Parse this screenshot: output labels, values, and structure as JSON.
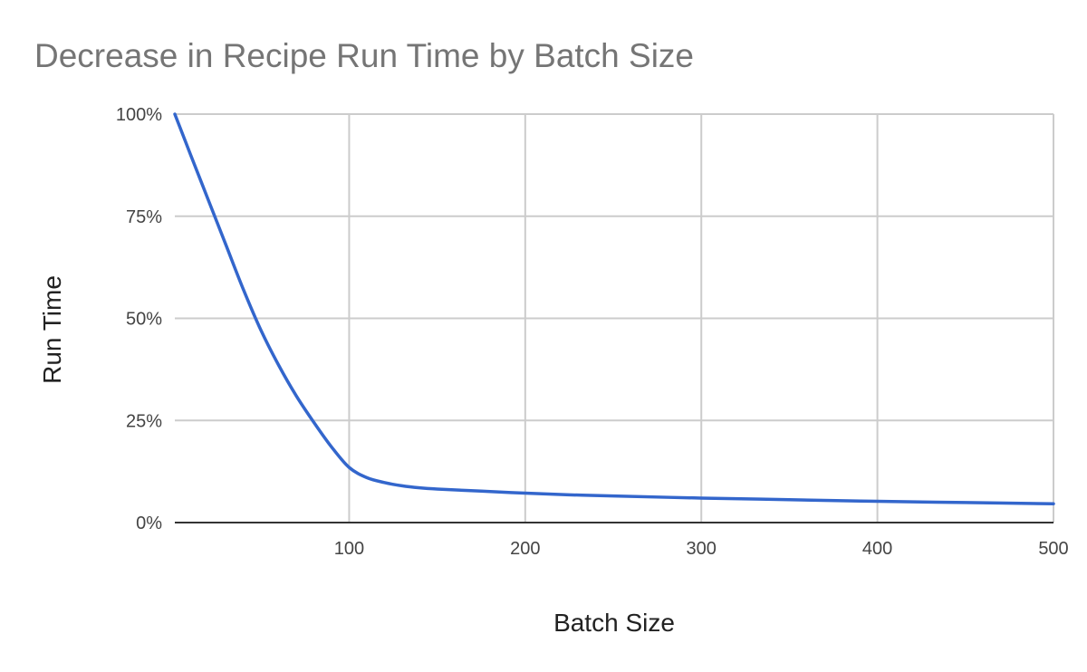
{
  "chart_data": {
    "type": "line",
    "title": "Decrease in Recipe Run Time by Batch Size",
    "xlabel": "Batch Size",
    "ylabel": "Run Time",
    "xlim": [
      1,
      500
    ],
    "ylim": [
      0,
      1
    ],
    "x_ticks": [
      100,
      200,
      300,
      400,
      500
    ],
    "x_tick_labels": [
      "100",
      "200",
      "300",
      "400",
      "500"
    ],
    "y_ticks": [
      0,
      0.25,
      0.5,
      0.75,
      1.0
    ],
    "y_tick_labels": [
      "0%",
      "25%",
      "50%",
      "75%",
      "100%"
    ],
    "grid": true,
    "legend": "none",
    "series": [
      {
        "color": "#3366cc",
        "x": [
          1,
          10,
          20,
          30,
          40,
          50,
          60,
          70,
          80,
          90,
          100,
          110,
          120,
          130,
          140,
          150,
          175,
          200,
          225,
          250,
          300,
          350,
          400,
          450,
          500
        ],
        "y": [
          1.0,
          0.9,
          0.79,
          0.68,
          0.57,
          0.47,
          0.385,
          0.31,
          0.245,
          0.185,
          0.135,
          0.11,
          0.098,
          0.09,
          0.085,
          0.082,
          0.077,
          0.072,
          0.068,
          0.065,
          0.06,
          0.056,
          0.052,
          0.049,
          0.046
        ]
      }
    ]
  }
}
